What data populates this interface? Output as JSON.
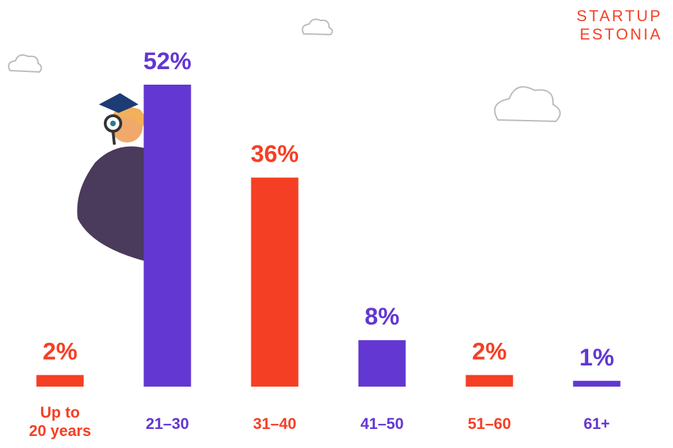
{
  "chart_data": {
    "type": "bar",
    "categories": [
      "Up to\n20 years",
      "21–30",
      "31–40",
      "41–50",
      "51–60",
      "61+"
    ],
    "values": [
      2,
      52,
      36,
      8,
      2,
      1
    ],
    "value_labels": [
      "2%",
      "52%",
      "36%",
      "8%",
      "2%",
      "1%"
    ],
    "colors": [
      "#f53f24",
      "#6237d2",
      "#f53f24",
      "#6237d2",
      "#f53f24",
      "#6237d2"
    ],
    "ylim": [
      0,
      52
    ]
  },
  "logo": {
    "line1": "STARTUP",
    "line2": "ESTONIA"
  }
}
